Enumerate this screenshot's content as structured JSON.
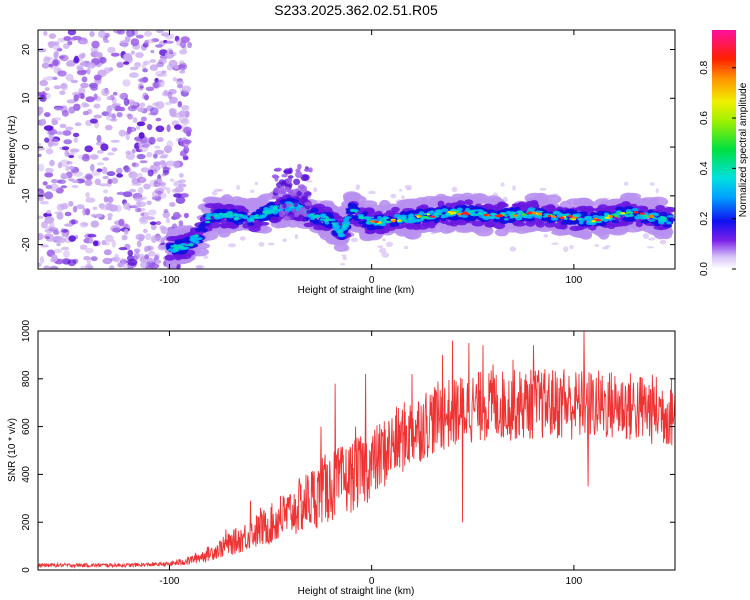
{
  "title": "S233.2025.362.02.51.R05",
  "colors": {
    "snr_line": "#ee3333",
    "scatter_light": "#c8a8f0",
    "scatter_mid": "#9a5ce6",
    "scatter_dark": "#5a10d8"
  },
  "chart_data": [
    {
      "type": "heatmap",
      "title": "S233.2025.362.02.51.R05",
      "xlabel": "Height of straight line (km)",
      "ylabel": "Frequency (Hz)",
      "xlim": [
        -165,
        150
      ],
      "ylim": [
        -25,
        24
      ],
      "x_ticks": [
        -100,
        0,
        100
      ],
      "y_ticks": [
        20,
        10,
        0,
        -10,
        -20
      ],
      "x_tick_labels": [
        "-100",
        "0",
        "100"
      ],
      "y_tick_labels": [
        "20",
        "10",
        "0",
        "-10",
        "-20"
      ],
      "colorbar": {
        "label": "Normalized spectral amplitude",
        "range": [
          0.0,
          0.95
        ],
        "ticks": [
          "0.0",
          "0.2",
          "0.4",
          "0.6",
          "0.8"
        ],
        "colormap": "rainbow"
      },
      "signal_track": {
        "x": [
          -100,
          -90,
          -85,
          -80,
          -70,
          -60,
          -50,
          -40,
          -30,
          -20,
          -15,
          -10,
          0,
          10,
          20,
          30,
          40,
          50,
          60,
          70,
          80,
          90,
          100,
          110,
          120,
          130,
          140,
          148
        ],
        "y": [
          -21,
          -20,
          -18,
          -14,
          -14,
          -15,
          -13,
          -12,
          -14,
          -15,
          -18,
          -13,
          -15.5,
          -15,
          -14.5,
          -14,
          -13.5,
          -13.5,
          -14,
          -14,
          -13.5,
          -14,
          -14.5,
          -15,
          -14,
          -13.5,
          -14.5,
          -15
        ]
      },
      "noise_region_x": [
        -165,
        -90
      ]
    },
    {
      "type": "line",
      "xlabel": "Height of straight line (km)",
      "ylabel": "SNR (10 * v/v)",
      "xlim": [
        -165,
        150
      ],
      "ylim": [
        0,
        1000
      ],
      "x_ticks": [
        -100,
        0,
        100
      ],
      "y_ticks": [
        0,
        200,
        400,
        600,
        800,
        1000
      ],
      "x_tick_labels": [
        "-100",
        "0",
        "100"
      ],
      "y_tick_labels": [
        "0",
        "200",
        "400",
        "600",
        "800",
        "1000"
      ],
      "trend": {
        "x": [
          -165,
          -120,
          -100,
          -90,
          -80,
          -70,
          -60,
          -50,
          -40,
          -30,
          -20,
          -10,
          0,
          10,
          20,
          30,
          40,
          50,
          60,
          70,
          80,
          90,
          100,
          110,
          120,
          130,
          140,
          150
        ],
        "y": [
          20,
          20,
          25,
          40,
          70,
          110,
          150,
          190,
          240,
          300,
          350,
          390,
          440,
          520,
          580,
          630,
          660,
          680,
          690,
          690,
          695,
          695,
          690,
          690,
          690,
          680,
          670,
          660
        ]
      },
      "spikes": {
        "x": [
          -72,
          -60,
          -55,
          -45,
          -40,
          -25,
          -22,
          -18,
          -8,
          -3,
          20,
          35,
          40,
          45,
          48,
          55,
          60,
          70,
          80,
          95,
          105,
          107
        ],
        "y": [
          170,
          290,
          260,
          310,
          210,
          600,
          440,
          780,
          600,
          820,
          820,
          900,
          960,
          200,
          950,
          940,
          860,
          880,
          940,
          840,
          1000,
          350
        ]
      }
    }
  ]
}
